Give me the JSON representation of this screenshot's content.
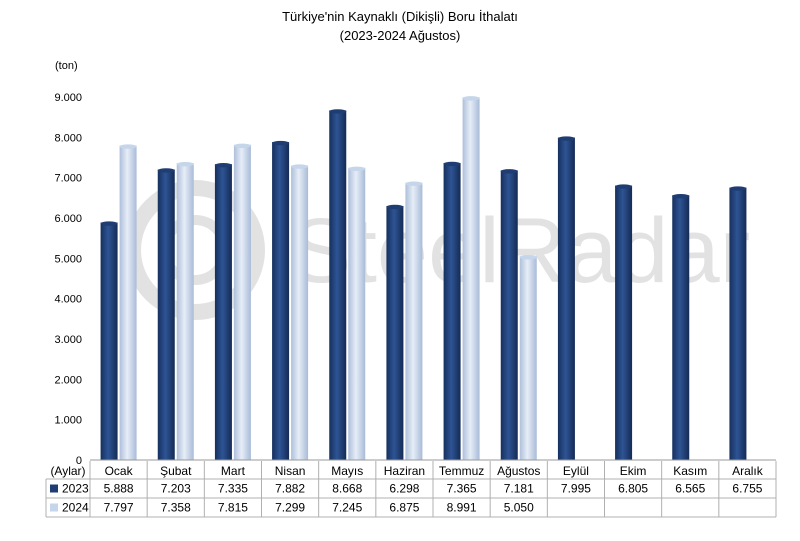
{
  "chart_data": {
    "type": "bar",
    "title": "Türkiye'nin Kaynaklı (Dikişli) Boru İthalatı",
    "subtitle": "(2023-2024 Ağustos)",
    "ylabel": "(ton)",
    "xlabel": "(Aylar)",
    "ylim": [
      0,
      9000
    ],
    "yticks": [
      "0",
      "1.000",
      "2.000",
      "3.000",
      "4.000",
      "5.000",
      "6.000",
      "7.000",
      "8.000",
      "9.000"
    ],
    "ytick_values": [
      0,
      1000,
      2000,
      3000,
      4000,
      5000,
      6000,
      7000,
      8000,
      9000
    ],
    "categories": [
      "Ocak",
      "Şubat",
      "Mart",
      "Nisan",
      "Mayıs",
      "Haziran",
      "Temmuz",
      "Ağustos",
      "Eylül",
      "Ekim",
      "Kasım",
      "Aralık"
    ],
    "series": [
      {
        "name": "2023",
        "color": "#1f3d73",
        "values": [
          5888,
          7203,
          7335,
          7882,
          8668,
          6298,
          7365,
          7181,
          7995,
          6805,
          6565,
          6755
        ],
        "labels": [
          "5.888",
          "7.203",
          "7.335",
          "7.882",
          "8.668",
          "6.298",
          "7.365",
          "7.181",
          "7.995",
          "6.805",
          "6.565",
          "6.755"
        ]
      },
      {
        "name": "2024",
        "color": "#c5d5ea",
        "values": [
          7797,
          7358,
          7815,
          7299,
          7245,
          6875,
          8991,
          5050,
          null,
          null,
          null,
          null
        ],
        "labels": [
          "7.797",
          "7.358",
          "7.815",
          "7.299",
          "7.245",
          "6.875",
          "8.991",
          "5.050",
          "",
          "",
          "",
          ""
        ]
      }
    ],
    "grid": false,
    "legend": "data-table"
  },
  "watermark": "SteelRadar"
}
